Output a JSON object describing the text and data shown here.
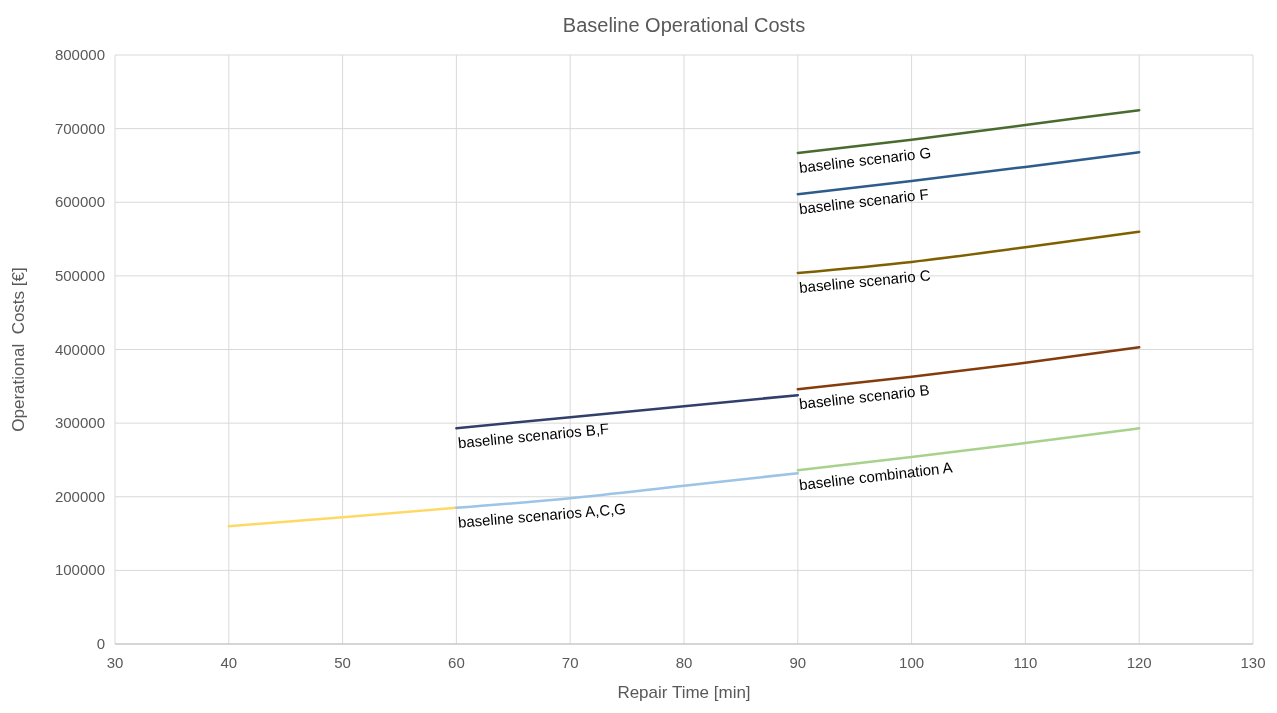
{
  "chart_data": {
    "type": "line",
    "title": "Baseline Operational Costs",
    "xlabel": "Repair Time [min]",
    "ylabel": "Operational  Costs [€]",
    "xlim": [
      30,
      130
    ],
    "xticks": [
      30,
      40,
      50,
      60,
      70,
      80,
      90,
      100,
      110,
      120,
      130
    ],
    "ylim": [
      0,
      800000
    ],
    "yticks": [
      0,
      100000,
      200000,
      300000,
      400000,
      500000,
      600000,
      700000,
      800000
    ],
    "grid": true,
    "marker": "none",
    "line_style": "solid",
    "series": [
      {
        "color": "#ffd966",
        "x": [
          40,
          50,
          60
        ],
        "values": [
          160000,
          172000,
          185000
        ]
      },
      {
        "name": "baseline scenarios  A,C,G",
        "color": "#9dc3e6",
        "x": [
          60,
          70,
          80,
          90
        ],
        "values": [
          185000,
          198000,
          215000,
          232000
        ]
      },
      {
        "name": "baseline scenarios B,F",
        "color": "#333f6b",
        "x": [
          60,
          70,
          80,
          90
        ],
        "values": [
          293000,
          308000,
          323000,
          338000
        ]
      },
      {
        "name": "baseline combination A",
        "color": "#a9d18e",
        "x": [
          90,
          100,
          110,
          120
        ],
        "values": [
          236000,
          254000,
          273000,
          293000
        ]
      },
      {
        "name": "baseline scenario B",
        "color": "#843c0c",
        "x": [
          90,
          100,
          110,
          120
        ],
        "values": [
          346000,
          363000,
          382000,
          403000
        ]
      },
      {
        "name": "baseline scenario C",
        "color": "#7f6000",
        "x": [
          90,
          100,
          110,
          120
        ],
        "values": [
          504000,
          519000,
          539000,
          560000
        ]
      },
      {
        "name": "baseline scenario F",
        "color": "#2e5c8a",
        "x": [
          90,
          100,
          110,
          120
        ],
        "values": [
          611000,
          629000,
          648000,
          668000
        ]
      },
      {
        "name": "baseline scenario G",
        "color": "#4a6b2e",
        "x": [
          90,
          100,
          110,
          120
        ],
        "values": [
          667000,
          685000,
          705000,
          725000
        ]
      }
    ]
  }
}
